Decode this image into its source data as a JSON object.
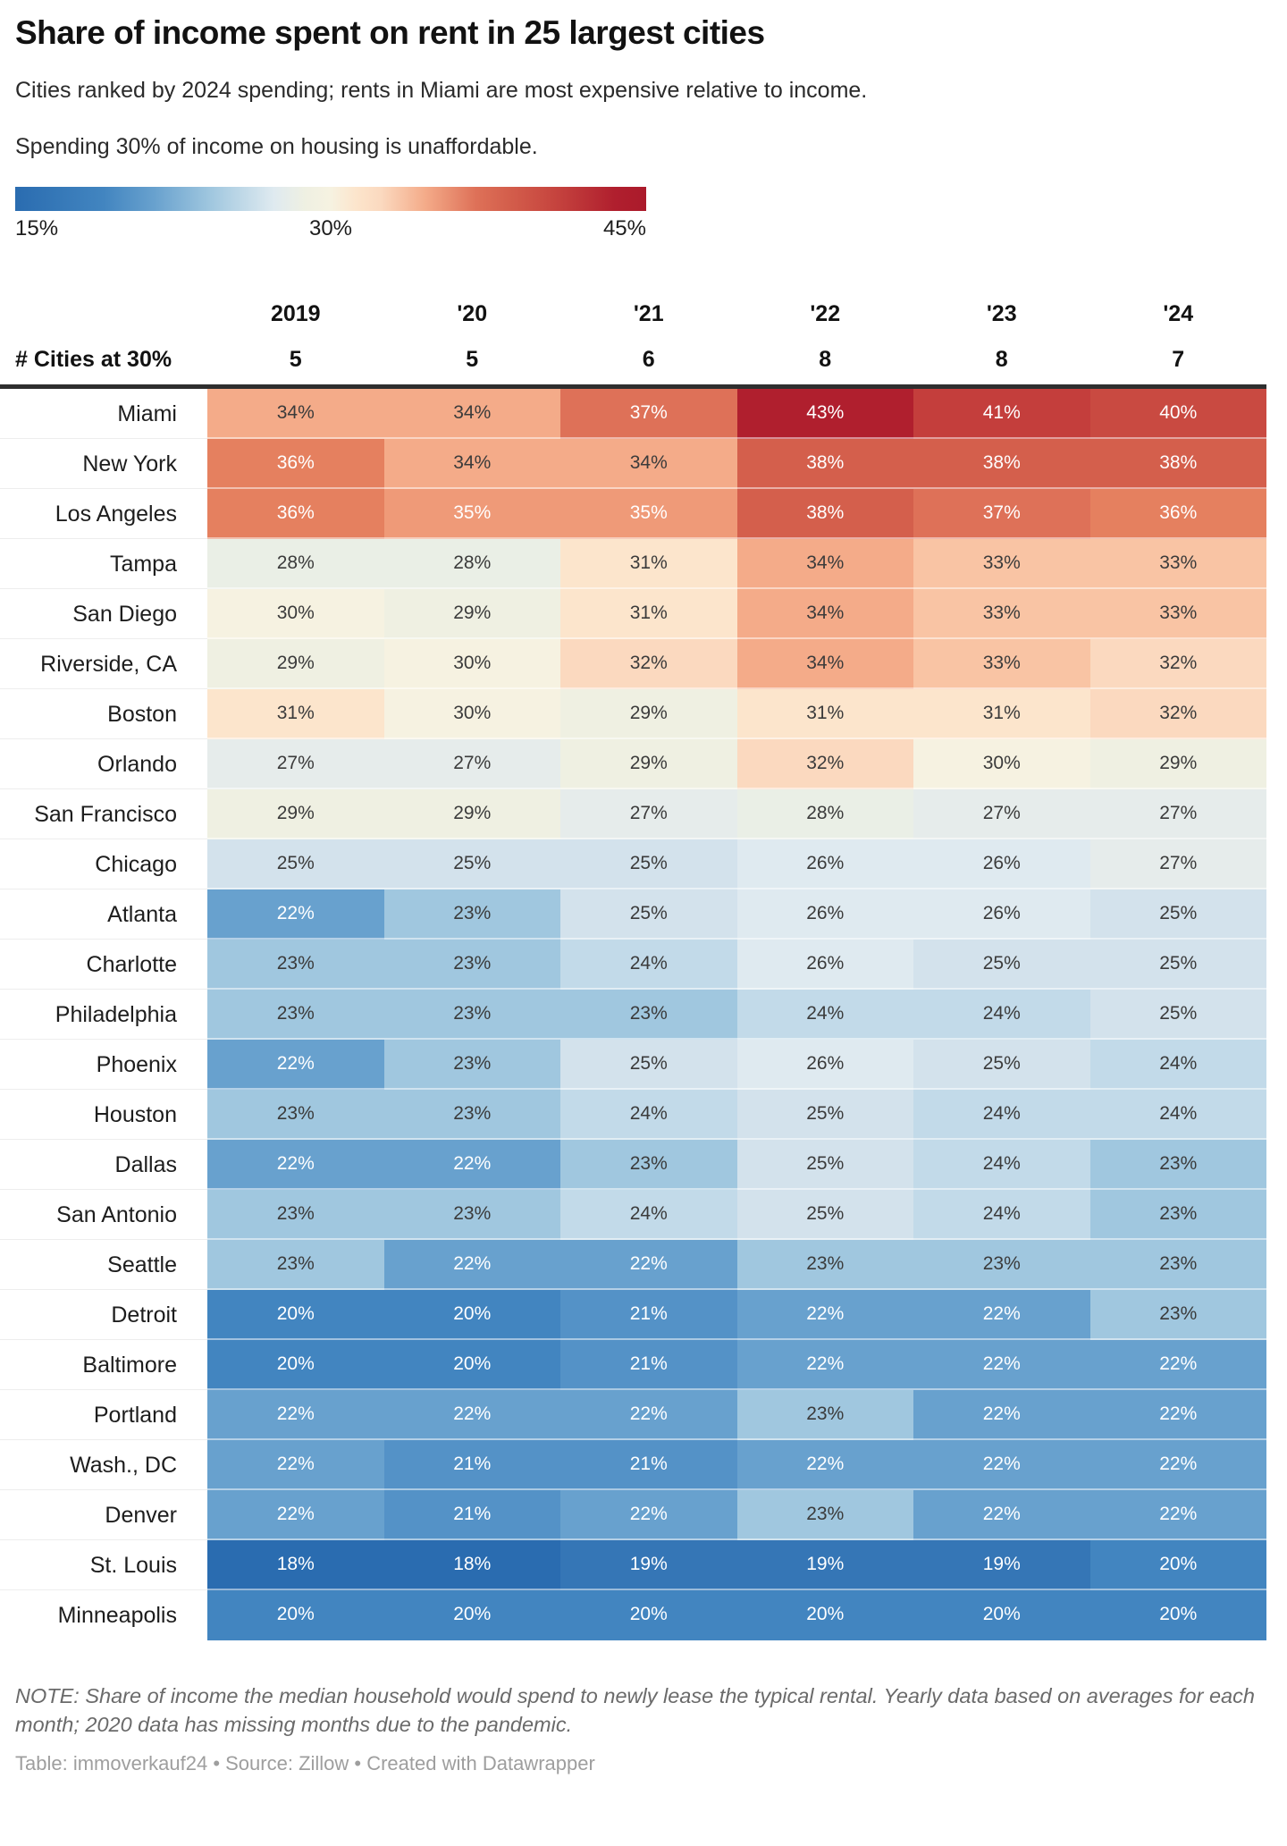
{
  "header": {
    "title": "Share of income spent on rent in 25 largest cities",
    "subtitle": "Cities ranked by 2024 spending; rents in Miami are most expensive relative to income.",
    "callout": "Spending 30% of income on housing is unaffordable."
  },
  "legend": {
    "min_label": "15%",
    "mid_label": "30%",
    "max_label": "45%"
  },
  "table": {
    "year_headers": [
      "2019",
      "'20",
      "'21",
      "'22",
      "'23",
      "'24"
    ],
    "counts_label": "# Cities at 30%",
    "counts": [
      "5",
      "5",
      "6",
      "8",
      "8",
      "7"
    ]
  },
  "chart_data": {
    "type": "heatmap",
    "title": "Share of income spent on rent in 25 largest cities",
    "unit": "%",
    "columns": [
      "2019",
      "2020",
      "2021",
      "2022",
      "2023",
      "2024"
    ],
    "cities_at_30_percent": [
      5,
      5,
      6,
      8,
      8,
      7
    ],
    "color_scale": {
      "min": 15,
      "mid": 30,
      "max": 45,
      "min_color": "#2a6cb0",
      "mid_color": "#f6f2e1",
      "max_color": "#b01f2e"
    },
    "rows": [
      {
        "city": "Miami",
        "values": [
          34,
          34,
          37,
          43,
          41,
          40
        ]
      },
      {
        "city": "New York",
        "values": [
          36,
          34,
          34,
          38,
          38,
          38
        ]
      },
      {
        "city": "Los Angeles",
        "values": [
          36,
          35,
          35,
          38,
          37,
          36
        ]
      },
      {
        "city": "Tampa",
        "values": [
          28,
          28,
          31,
          34,
          33,
          33
        ]
      },
      {
        "city": "San Diego",
        "values": [
          30,
          29,
          31,
          34,
          33,
          33
        ]
      },
      {
        "city": "Riverside, CA",
        "values": [
          29,
          30,
          32,
          34,
          33,
          32
        ]
      },
      {
        "city": "Boston",
        "values": [
          31,
          30,
          29,
          31,
          31,
          32
        ]
      },
      {
        "city": "Orlando",
        "values": [
          27,
          27,
          29,
          32,
          30,
          29
        ]
      },
      {
        "city": "San Francisco",
        "values": [
          29,
          29,
          27,
          28,
          27,
          27
        ]
      },
      {
        "city": "Chicago",
        "values": [
          25,
          25,
          25,
          26,
          26,
          27
        ]
      },
      {
        "city": "Atlanta",
        "values": [
          22,
          23,
          25,
          26,
          26,
          25
        ]
      },
      {
        "city": "Charlotte",
        "values": [
          23,
          23,
          24,
          26,
          25,
          25
        ]
      },
      {
        "city": "Philadelphia",
        "values": [
          23,
          23,
          23,
          24,
          24,
          25
        ]
      },
      {
        "city": "Phoenix",
        "values": [
          22,
          23,
          25,
          26,
          25,
          24
        ]
      },
      {
        "city": "Houston",
        "values": [
          23,
          23,
          24,
          25,
          24,
          24
        ]
      },
      {
        "city": "Dallas",
        "values": [
          22,
          22,
          23,
          25,
          24,
          23
        ]
      },
      {
        "city": "San Antonio",
        "values": [
          23,
          23,
          24,
          25,
          24,
          23
        ]
      },
      {
        "city": "Seattle",
        "values": [
          23,
          22,
          22,
          23,
          23,
          23
        ]
      },
      {
        "city": "Detroit",
        "values": [
          20,
          20,
          21,
          22,
          22,
          23
        ]
      },
      {
        "city": "Baltimore",
        "values": [
          20,
          20,
          21,
          22,
          22,
          22
        ]
      },
      {
        "city": "Portland",
        "values": [
          22,
          22,
          22,
          23,
          22,
          22
        ]
      },
      {
        "city": "Wash., DC",
        "values": [
          22,
          21,
          21,
          22,
          22,
          22
        ]
      },
      {
        "city": "Denver",
        "values": [
          22,
          21,
          22,
          23,
          22,
          22
        ]
      },
      {
        "city": "St. Louis",
        "values": [
          18,
          18,
          19,
          19,
          19,
          20
        ]
      },
      {
        "city": "Minneapolis",
        "values": [
          20,
          20,
          20,
          20,
          20,
          20
        ]
      }
    ]
  },
  "colors": {
    "value_colors": {
      "18": "#2a6cb0",
      "19": "#3576b6",
      "20": "#4285c0",
      "21": "#5492c7",
      "22": "#68a1ce",
      "23": "#a0c7df",
      "24": "#c2dae9",
      "25": "#d3e2ec",
      "26": "#dfeaf0",
      "27": "#e6eceb",
      "28": "#eaefe6",
      "29": "#eff0e2",
      "30": "#f6f2e1",
      "31": "#fce5cc",
      "32": "#fbd9bf",
      "33": "#f9c4a4",
      "34": "#f4ab89",
      "35": "#ef9a78",
      "36": "#e5805f",
      "37": "#de7158",
      "38": "#d45f4c",
      "40": "#c94a41",
      "41": "#c43e3c",
      "43": "#b01f2e"
    },
    "dark_text": "#3b3b3b",
    "light_text": "#ffffff",
    "white_text_low_max": 22,
    "white_text_high_min": 35
  },
  "footer": {
    "note": "NOTE: Share of income the median household would spend to newly lease the typical rental. Yearly data based on averages for each month; 2020 data has missing months due to the pandemic.",
    "attribution": "Table: immoverkauf24 • Source: Zillow • Created with Datawrapper"
  }
}
